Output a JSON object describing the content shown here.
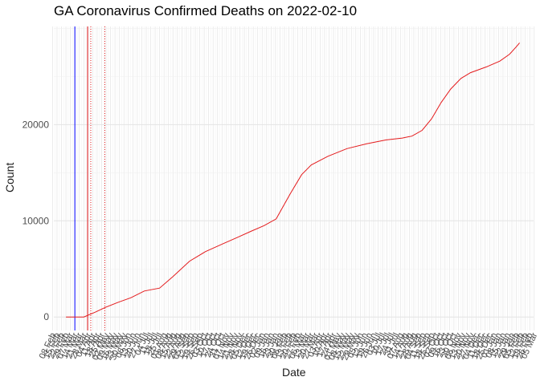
{
  "chart_data": {
    "type": "line",
    "title": "GA Coronavirus Confirmed Deaths on 2022-02-10",
    "xlabel": "Date",
    "ylabel": "Count",
    "x_range": [
      "2020-02-10",
      "2022-03-04"
    ],
    "ylim": [
      -1400,
      30200
    ],
    "y_ticks": [
      0,
      10000,
      20000
    ],
    "grid": true,
    "colors": {
      "series": "#e41a1c",
      "vline_blue": "#0000ff",
      "vline_red": "#e41a1c",
      "grid_major": "#e4e4e4",
      "grid_minor": "#f0f0f0",
      "text": "#4d4d4d"
    },
    "vlines": [
      {
        "date": "2020-03-14",
        "color": "blue",
        "style": "solid"
      },
      {
        "date": "2020-04-03",
        "color": "red",
        "style": "solid"
      },
      {
        "date": "2020-04-08",
        "color": "red",
        "style": "dotted"
      },
      {
        "date": "2020-04-30",
        "color": "red",
        "style": "dotted"
      }
    ],
    "series": [
      {
        "points": [
          [
            "2020-02-29",
            0
          ],
          [
            "2020-03-14",
            0
          ],
          [
            "2020-03-28",
            0
          ],
          [
            "2020-04-15",
            500
          ],
          [
            "2020-05-01",
            1000
          ],
          [
            "2020-05-20",
            1500
          ],
          [
            "2020-06-10",
            2000
          ],
          [
            "2020-07-01",
            2700
          ],
          [
            "2020-07-25",
            3000
          ],
          [
            "2020-08-15",
            4200
          ],
          [
            "2020-09-10",
            5800
          ],
          [
            "2020-10-05",
            6800
          ],
          [
            "2020-11-01",
            7600
          ],
          [
            "2020-11-25",
            8300
          ],
          [
            "2020-12-15",
            8900
          ],
          [
            "2021-01-05",
            9500
          ],
          [
            "2021-01-24",
            10200
          ],
          [
            "2021-02-15",
            12800
          ],
          [
            "2021-03-05",
            14800
          ],
          [
            "2021-03-20",
            15800
          ],
          [
            "2021-04-15",
            16700
          ],
          [
            "2021-05-15",
            17500
          ],
          [
            "2021-06-15",
            18000
          ],
          [
            "2021-07-15",
            18400
          ],
          [
            "2021-08-10",
            18600
          ],
          [
            "2021-08-25",
            18800
          ],
          [
            "2021-09-10",
            19400
          ],
          [
            "2021-09-25",
            20600
          ],
          [
            "2021-10-10",
            22300
          ],
          [
            "2021-10-25",
            23700
          ],
          [
            "2021-11-10",
            24800
          ],
          [
            "2021-11-25",
            25400
          ],
          [
            "2021-12-20",
            26000
          ],
          [
            "2022-01-10",
            26600
          ],
          [
            "2022-01-25",
            27300
          ],
          [
            "2022-02-05",
            28100
          ],
          [
            "2022-02-10",
            28500
          ]
        ]
      }
    ],
    "x_ticks": [
      "08 Feb",
      "15 Feb",
      "22 Feb",
      "29 Feb",
      "07 Mar",
      "14 Mar",
      "21 Mar",
      "28 Mar",
      "04 Apr",
      "11 Apr",
      "18 Apr",
      "25 Apr",
      "02 May",
      "09 May",
      "16 May",
      "23 May",
      "30 May",
      "06 Jun",
      "13 Jun",
      "20 Jun",
      "27 Jun",
      "04 Jul",
      "11 Jul",
      "18 Jul",
      "25 Jul",
      "01 Aug",
      "08 Aug",
      "15 Aug",
      "22 Aug",
      "29 Aug",
      "05 Sep",
      "12 Sep",
      "19 Sep",
      "26 Sep",
      "03 Oct",
      "10 Oct",
      "17 Oct",
      "24 Oct",
      "31 Oct",
      "07 Nov",
      "14 Nov",
      "21 Nov",
      "28 Nov",
      "05 Dec",
      "12 Dec",
      "19 Dec",
      "26 Dec",
      "02 Jan",
      "09 Jan",
      "16 Jan",
      "23 Jan",
      "30 Jan",
      "06 Feb",
      "13 Feb",
      "20 Feb",
      "27 Feb",
      "06 Mar",
      "13 Mar",
      "20 Mar",
      "27 Mar",
      "03 Apr",
      "10 Apr",
      "17 Apr",
      "24 Apr",
      "01 May",
      "08 May",
      "15 May",
      "22 May",
      "29 May",
      "05 Jun",
      "12 Jun",
      "19 Jun",
      "26 Jun",
      "03 Jul",
      "10 Jul",
      "17 Jul",
      "24 Jul",
      "31 Jul",
      "07 Aug",
      "14 Aug",
      "21 Aug",
      "28 Aug",
      "04 Sep",
      "11 Sep",
      "18 Sep",
      "25 Sep",
      "02 Oct",
      "09 Oct",
      "16 Oct",
      "23 Oct",
      "30 Oct",
      "06 Nov",
      "13 Nov",
      "20 Nov",
      "27 Nov",
      "04 Dec",
      "11 Dec",
      "18 Dec",
      "25 Dec",
      "01 Jan",
      "08 Jan",
      "15 Jan",
      "22 Jan",
      "29 Jan",
      "05 Feb",
      "12 Feb",
      "19 Feb",
      "26 Feb",
      "05 Mar"
    ]
  }
}
